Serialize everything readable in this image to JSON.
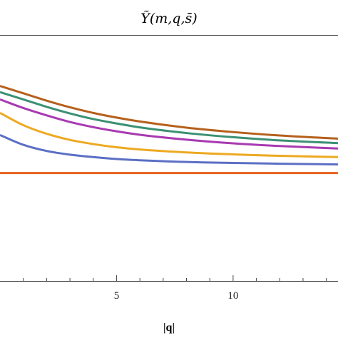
{
  "chart_data": {
    "type": "line",
    "title": "Ỹ(m,q,s̄)",
    "xlabel": "|q|",
    "ylabel": "",
    "xlim": [
      0,
      14.5
    ],
    "ylim": [
      0,
      1
    ],
    "grid": false,
    "x_ticks": [
      {
        "value": 5,
        "label": "5"
      },
      {
        "value": 10,
        "label": "10"
      }
    ],
    "x_minor_ticks": [
      1,
      2,
      3,
      4,
      6,
      7,
      8,
      9,
      11,
      12,
      13,
      14
    ],
    "series": [
      {
        "color": "#e8601c",
        "x": [
          0,
          2,
          4,
          6,
          8,
          10,
          12,
          14.5
        ],
        "y": [
          0.44,
          0.44,
          0.44,
          0.44,
          0.44,
          0.44,
          0.44,
          0.44
        ]
      },
      {
        "color": "#5b6fc4",
        "x": [
          0,
          1,
          2,
          3,
          4,
          5,
          6,
          8,
          10,
          12,
          14.5
        ],
        "y": [
          0.595,
          0.555,
          0.53,
          0.515,
          0.505,
          0.497,
          0.492,
          0.485,
          0.481,
          0.478,
          0.475
        ]
      },
      {
        "color": "#eda921",
        "x": [
          0,
          1,
          2,
          3,
          4,
          5,
          6,
          8,
          10,
          12,
          14.5
        ],
        "y": [
          0.685,
          0.635,
          0.6,
          0.575,
          0.558,
          0.545,
          0.536,
          0.524,
          0.516,
          0.51,
          0.505
        ]
      },
      {
        "color": "#a83ab2",
        "x": [
          0,
          1,
          2,
          3,
          4,
          5,
          6,
          8,
          10,
          12,
          14.5
        ],
        "y": [
          0.74,
          0.705,
          0.675,
          0.648,
          0.627,
          0.61,
          0.596,
          0.576,
          0.561,
          0.55,
          0.54
        ]
      },
      {
        "color": "#3b9073",
        "x": [
          0,
          1,
          2,
          3,
          4,
          5,
          6,
          8,
          10,
          12,
          14.5
        ],
        "y": [
          0.77,
          0.74,
          0.71,
          0.683,
          0.66,
          0.642,
          0.626,
          0.603,
          0.586,
          0.573,
          0.562
        ]
      },
      {
        "color": "#b5601c",
        "x": [
          0,
          1,
          2,
          3,
          4,
          5,
          6,
          8,
          10,
          12,
          14.5
        ],
        "y": [
          0.795,
          0.765,
          0.735,
          0.708,
          0.685,
          0.666,
          0.65,
          0.625,
          0.607,
          0.593,
          0.58
        ]
      }
    ]
  }
}
